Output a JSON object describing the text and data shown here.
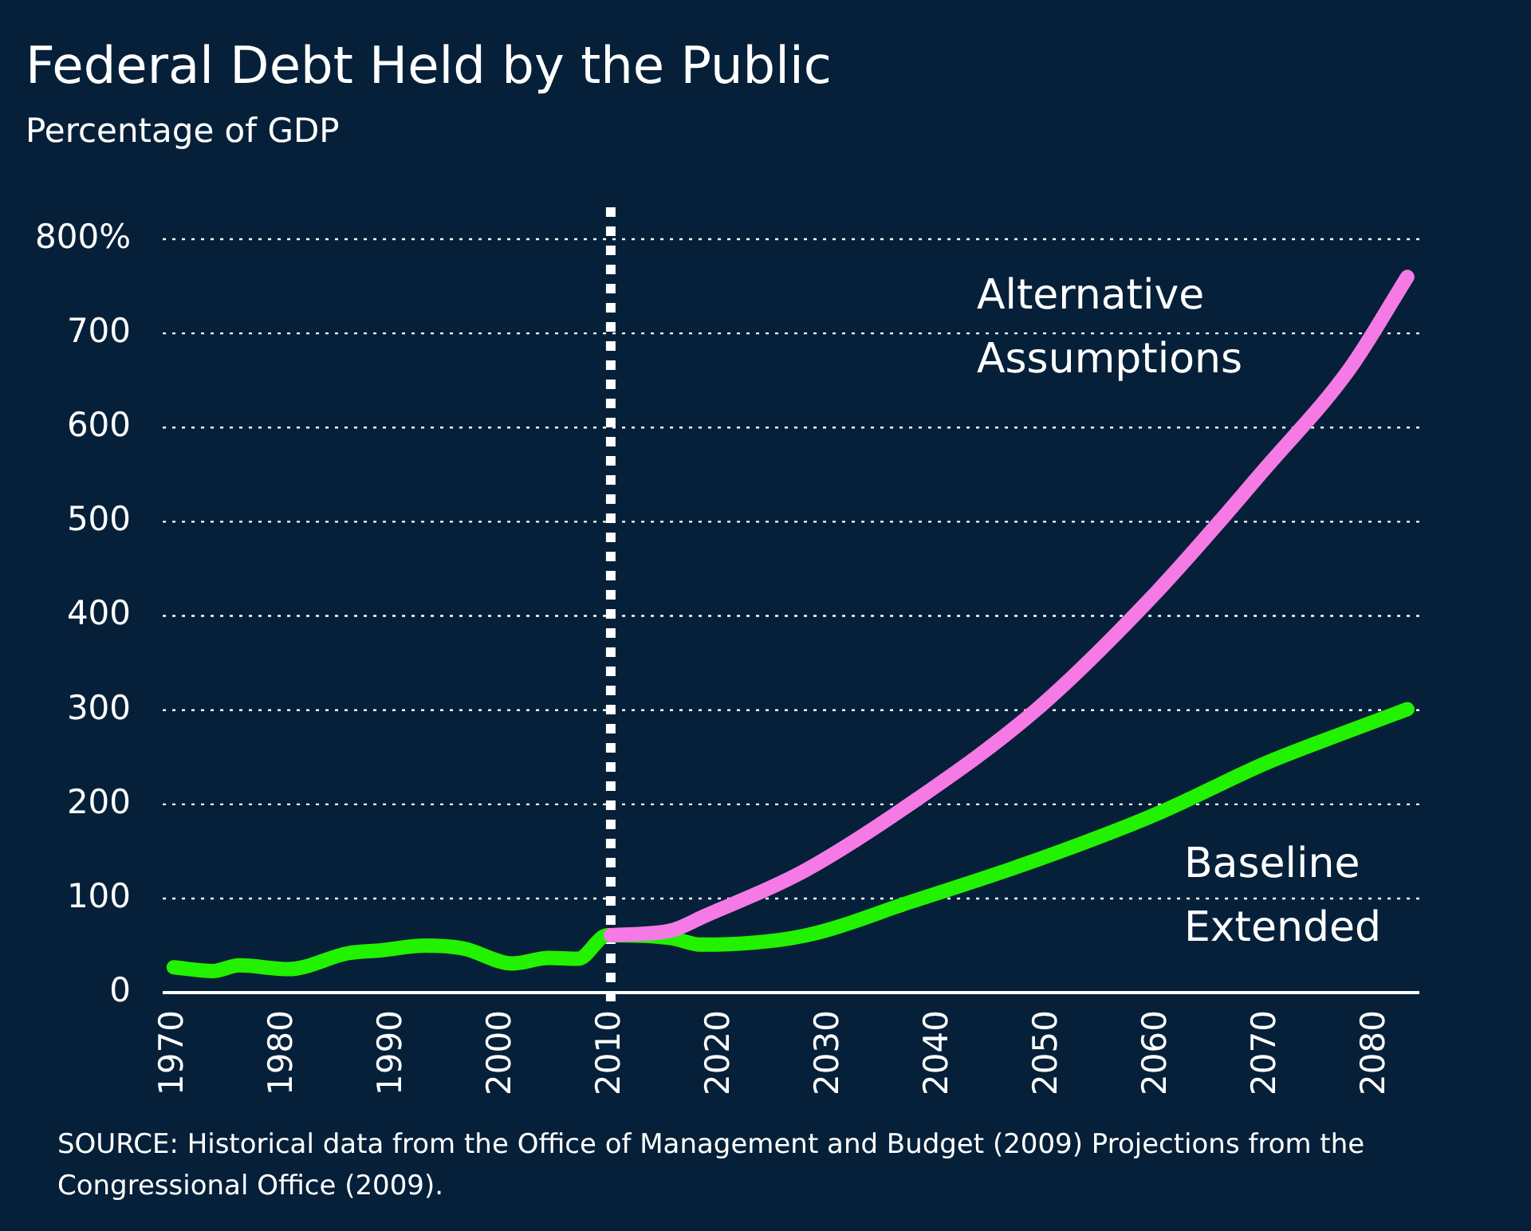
{
  "chart_data": {
    "type": "line",
    "title": "Federal Debt Held by the Public",
    "subtitle": "Percentage of GDP",
    "annotations": [
      "SOURCE: Historical data from the Office of Management and Budget (2009) Projections from the Congressional Office (2009)."
    ],
    "series": [
      {
        "name": "Alternative Assumptions",
        "color": "#f57ae6",
        "x": [
          2010,
          2015.5,
          2018.5,
          2027.5,
          2037.6,
          2049,
          2060,
          2070,
          2077.6,
          2082.9
        ],
        "values": [
          61,
          66,
          81,
          128,
          202,
          301,
          426,
          558,
          662,
          760
        ]
      },
      {
        "name": "Baseline Extended",
        "color": "#22f200",
        "x": [
          1970,
          1973.6,
          1976,
          1980.5,
          1986,
          1989,
          1993,
          1996.5,
          2001,
          2004.3,
          2007,
          2009.7,
          2015.5,
          2018.3,
          2027.5,
          2037.6,
          2049,
          2060,
          2070,
          2077.6,
          2082.9
        ],
        "values": [
          27,
          23,
          29,
          25,
          42,
          45,
          50,
          47,
          31,
          37,
          36,
          61,
          58,
          51,
          60,
          97,
          141,
          190,
          244,
          278,
          301
        ]
      }
    ],
    "xlim": [
      1969,
      2084
    ],
    "xticks": [
      1970,
      1980,
      1990,
      2000,
      2010,
      2020,
      2030,
      2040,
      2050,
      2060,
      2070,
      2080
    ],
    "ylim": [
      0,
      800
    ],
    "yticks": [
      0,
      100,
      200,
      300,
      400,
      500,
      600,
      700,
      {
        "value": 800,
        "label": "800%"
      }
    ],
    "ref_lines": [
      {
        "axis": "x",
        "value": 2010,
        "color": "#ffffff",
        "line_style": "dotted"
      }
    ],
    "grid": "y",
    "legend": false,
    "marker": "none",
    "line_style": "solid"
  }
}
